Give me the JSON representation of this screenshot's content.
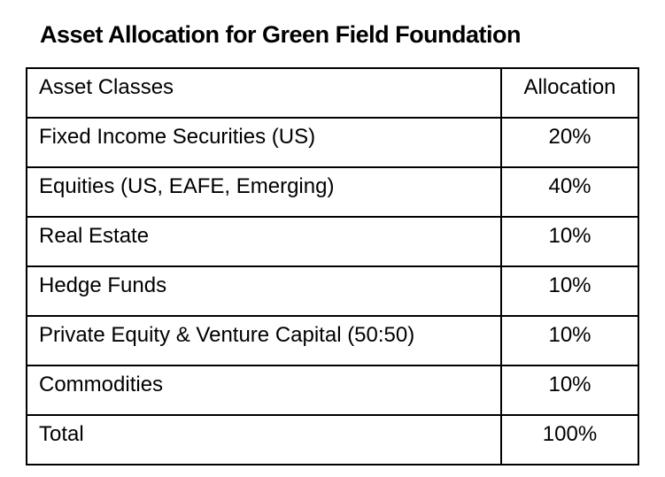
{
  "title": "Asset Allocation for Green Field Foundation",
  "table": {
    "headers": {
      "asset_classes": "Asset Classes",
      "allocation": "Allocation"
    },
    "rows": [
      {
        "asset_class": "Fixed Income Securities (US)",
        "allocation": "20%"
      },
      {
        "asset_class": "Equities (US, EAFE, Emerging)",
        "allocation": "40%"
      },
      {
        "asset_class": "Real Estate",
        "allocation": "10%"
      },
      {
        "asset_class": "Hedge Funds",
        "allocation": "10%"
      },
      {
        "asset_class": "Private Equity & Venture Capital (50:50)",
        "allocation": "10%"
      },
      {
        "asset_class": "Commodities",
        "allocation": "10%"
      }
    ],
    "total": {
      "label": "Total",
      "allocation": "100%"
    }
  },
  "colors": {
    "text": "#000000",
    "border": "#000000",
    "background": "#ffffff"
  }
}
